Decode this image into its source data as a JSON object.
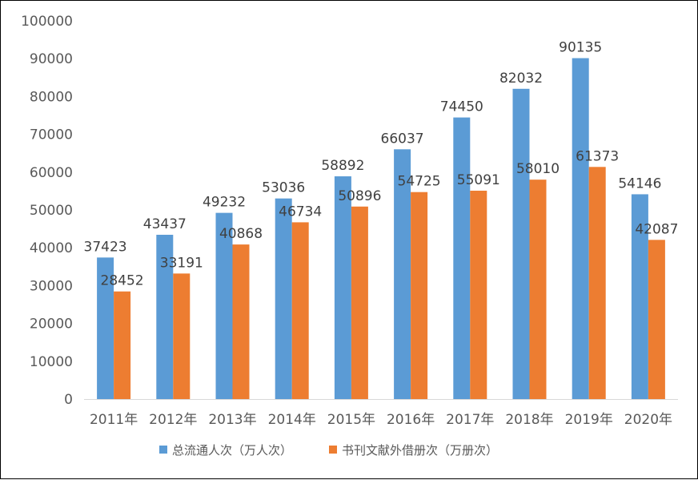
{
  "chart_data": {
    "type": "bar",
    "categories": [
      "2011年",
      "2012年",
      "2013年",
      "2014年",
      "2015年",
      "2016年",
      "2017年",
      "2018年",
      "2019年",
      "2020年"
    ],
    "series": [
      {
        "name": "总流通人次（万人次）",
        "color": "#5B9BD5",
        "values": [
          37423,
          43437,
          49232,
          53036,
          58892,
          66037,
          74450,
          82032,
          90135,
          54146
        ]
      },
      {
        "name": "书刊文献外借册次（万册次）",
        "color": "#ED7D31",
        "values": [
          28452,
          33191,
          40868,
          46734,
          50896,
          54725,
          55091,
          58010,
          61373,
          42087
        ]
      }
    ],
    "yticks": [
      "0",
      "10000",
      "20000",
      "30000",
      "40000",
      "50000",
      "60000",
      "70000",
      "80000",
      "90000",
      "100000"
    ],
    "ylim": [
      0,
      100000
    ],
    "grid": false,
    "legend_position": "bottom",
    "data_labels": true
  }
}
